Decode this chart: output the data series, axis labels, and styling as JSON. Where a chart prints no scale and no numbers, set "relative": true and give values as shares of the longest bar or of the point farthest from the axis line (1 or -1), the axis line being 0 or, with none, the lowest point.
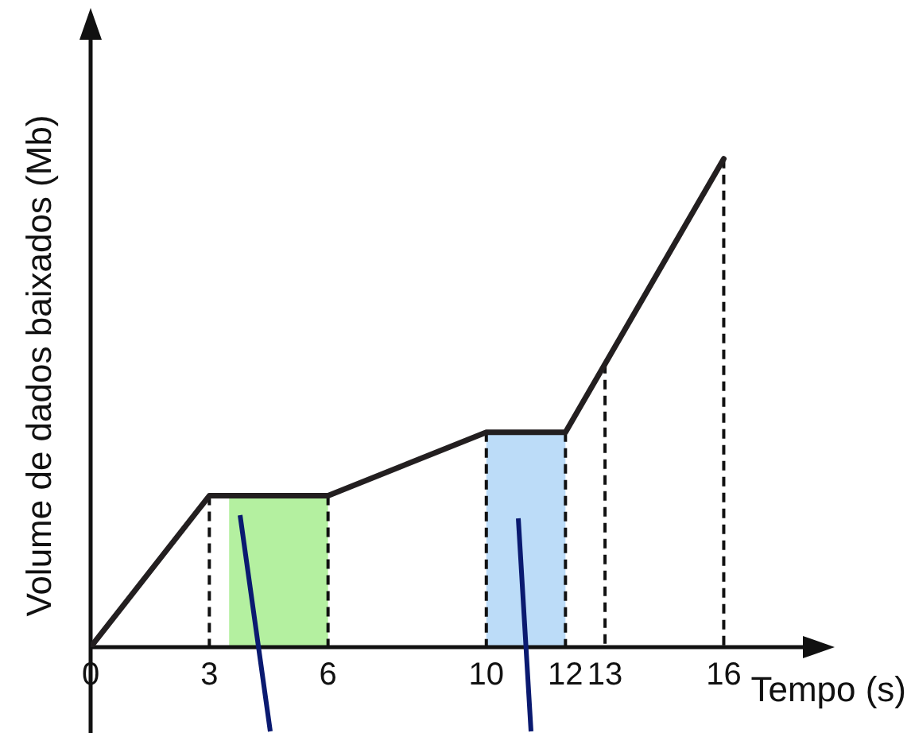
{
  "chart_data": {
    "type": "line",
    "xlabel": "Tempo (s)",
    "ylabel": "Volume de dados baixados (Mb)",
    "relative": true,
    "x": [
      0,
      3,
      6,
      10,
      12,
      13,
      16
    ],
    "series": [
      {
        "color": "#231f20",
        "values": [
          0,
          0.31,
          0.31,
          0.44,
          0.44,
          0.58,
          1
        ]
      }
    ],
    "xlim": [
      0,
      18
    ],
    "ref_lines": [
      {
        "axis": "x",
        "value": 3,
        "line_style": "dashed",
        "color": "#111111"
      },
      {
        "axis": "x",
        "value": 6,
        "line_style": "dashed",
        "color": "#111111"
      },
      {
        "axis": "x",
        "value": 10,
        "line_style": "dashed",
        "color": "#111111"
      },
      {
        "axis": "x",
        "value": 12,
        "line_style": "dashed",
        "color": "#111111"
      },
      {
        "axis": "x",
        "value": 13,
        "line_style": "dashed",
        "color": "#111111"
      },
      {
        "axis": "x",
        "value": 16,
        "line_style": "dashed",
        "color": "#111111"
      }
    ],
    "xticks": [
      0,
      3,
      6,
      10,
      12,
      13,
      16
    ],
    "bands": [
      {
        "axis": "x",
        "from": 3.5,
        "to": 6,
        "color": "#b4f0a0"
      },
      {
        "axis": "x",
        "from": 10,
        "to": 12,
        "color": "#bcdcf8"
      }
    ],
    "marker": "none",
    "line_style": "solid",
    "grid": false,
    "legend": false
  }
}
